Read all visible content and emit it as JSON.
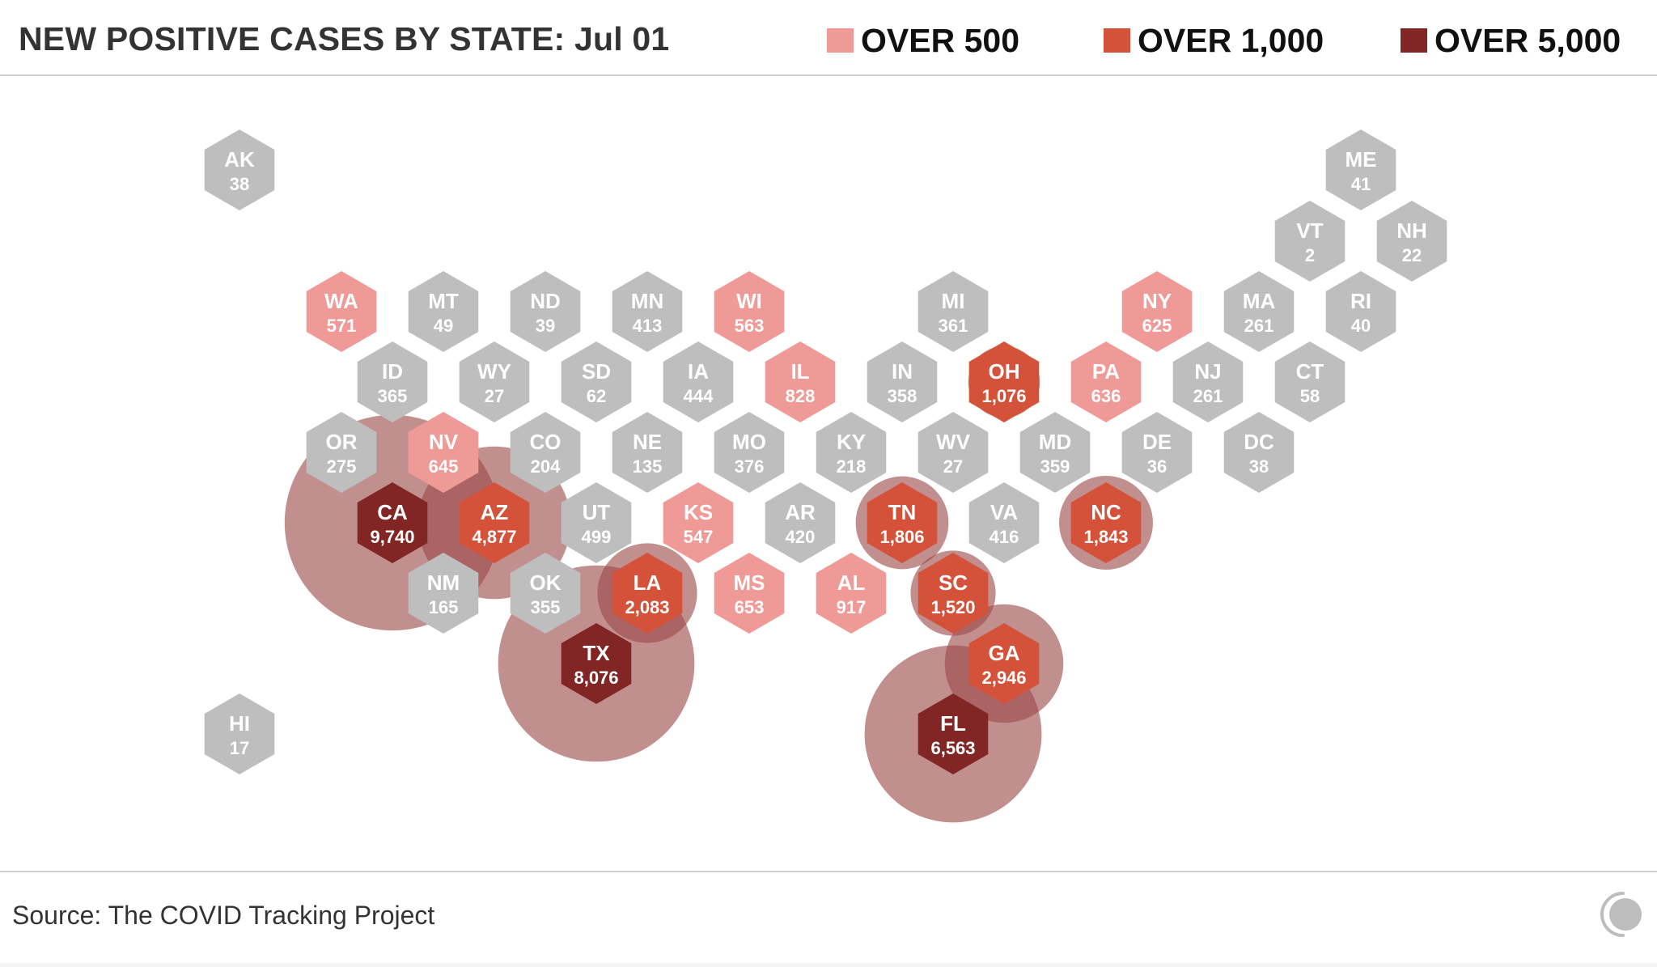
{
  "header": {
    "title": "NEW POSITIVE CASES BY STATE: Jul 01"
  },
  "legend": [
    {
      "label": "OVER 500",
      "color": "#f09a98"
    },
    {
      "label": "OVER 1,000",
      "color": "#d4513a"
    },
    {
      "label": "OVER 5,000",
      "color": "#812625"
    }
  ],
  "colors": {
    "none": "#bebebe",
    "over_500": "#f09a98",
    "over_1000": "#d4513a",
    "over_5000": "#812625",
    "bubble": "#9c4b4a"
  },
  "states": [
    {
      "abbr": "AK",
      "value": "38",
      "level": "none"
    },
    {
      "abbr": "ME",
      "value": "41",
      "level": "none"
    },
    {
      "abbr": "VT",
      "value": "2",
      "level": "none"
    },
    {
      "abbr": "NH",
      "value": "22",
      "level": "none"
    },
    {
      "abbr": "WA",
      "value": "571",
      "level": "over_500"
    },
    {
      "abbr": "MT",
      "value": "49",
      "level": "none"
    },
    {
      "abbr": "ND",
      "value": "39",
      "level": "none"
    },
    {
      "abbr": "MN",
      "value": "413",
      "level": "none"
    },
    {
      "abbr": "WI",
      "value": "563",
      "level": "over_500"
    },
    {
      "abbr": "MI",
      "value": "361",
      "level": "none"
    },
    {
      "abbr": "NY",
      "value": "625",
      "level": "over_500"
    },
    {
      "abbr": "MA",
      "value": "261",
      "level": "none"
    },
    {
      "abbr": "RI",
      "value": "40",
      "level": "none"
    },
    {
      "abbr": "ID",
      "value": "365",
      "level": "none"
    },
    {
      "abbr": "WY",
      "value": "27",
      "level": "none"
    },
    {
      "abbr": "SD",
      "value": "62",
      "level": "none"
    },
    {
      "abbr": "IA",
      "value": "444",
      "level": "none"
    },
    {
      "abbr": "IL",
      "value": "828",
      "level": "over_500"
    },
    {
      "abbr": "IN",
      "value": "358",
      "level": "none"
    },
    {
      "abbr": "OH",
      "value": "1,076",
      "level": "over_1000"
    },
    {
      "abbr": "PA",
      "value": "636",
      "level": "over_500"
    },
    {
      "abbr": "NJ",
      "value": "261",
      "level": "none"
    },
    {
      "abbr": "CT",
      "value": "58",
      "level": "none"
    },
    {
      "abbr": "OR",
      "value": "275",
      "level": "none"
    },
    {
      "abbr": "NV",
      "value": "645",
      "level": "over_500"
    },
    {
      "abbr": "CO",
      "value": "204",
      "level": "none"
    },
    {
      "abbr": "NE",
      "value": "135",
      "level": "none"
    },
    {
      "abbr": "MO",
      "value": "376",
      "level": "none"
    },
    {
      "abbr": "KY",
      "value": "218",
      "level": "none"
    },
    {
      "abbr": "WV",
      "value": "27",
      "level": "none"
    },
    {
      "abbr": "MD",
      "value": "359",
      "level": "none"
    },
    {
      "abbr": "DE",
      "value": "36",
      "level": "none"
    },
    {
      "abbr": "DC",
      "value": "38",
      "level": "none"
    },
    {
      "abbr": "CA",
      "value": "9,740",
      "level": "over_5000"
    },
    {
      "abbr": "AZ",
      "value": "4,877",
      "level": "over_1000"
    },
    {
      "abbr": "UT",
      "value": "499",
      "level": "none"
    },
    {
      "abbr": "KS",
      "value": "547",
      "level": "over_500"
    },
    {
      "abbr": "AR",
      "value": "420",
      "level": "none"
    },
    {
      "abbr": "TN",
      "value": "1,806",
      "level": "over_1000"
    },
    {
      "abbr": "VA",
      "value": "416",
      "level": "none"
    },
    {
      "abbr": "NC",
      "value": "1,843",
      "level": "over_1000"
    },
    {
      "abbr": "NM",
      "value": "165",
      "level": "none"
    },
    {
      "abbr": "OK",
      "value": "355",
      "level": "none"
    },
    {
      "abbr": "LA",
      "value": "2,083",
      "level": "over_1000"
    },
    {
      "abbr": "MS",
      "value": "653",
      "level": "over_500"
    },
    {
      "abbr": "AL",
      "value": "917",
      "level": "over_500"
    },
    {
      "abbr": "SC",
      "value": "1,520",
      "level": "over_1000"
    },
    {
      "abbr": "TX",
      "value": "8,076",
      "level": "over_5000"
    },
    {
      "abbr": "GA",
      "value": "2,946",
      "level": "over_1000"
    },
    {
      "abbr": "HI",
      "value": "17",
      "level": "none"
    },
    {
      "abbr": "FL",
      "value": "6,563",
      "level": "over_5000"
    }
  ],
  "footer": {
    "source": "Source: The COVID Tracking Project",
    "logo_icon": "covid-tracking-project-logo-icon"
  }
}
